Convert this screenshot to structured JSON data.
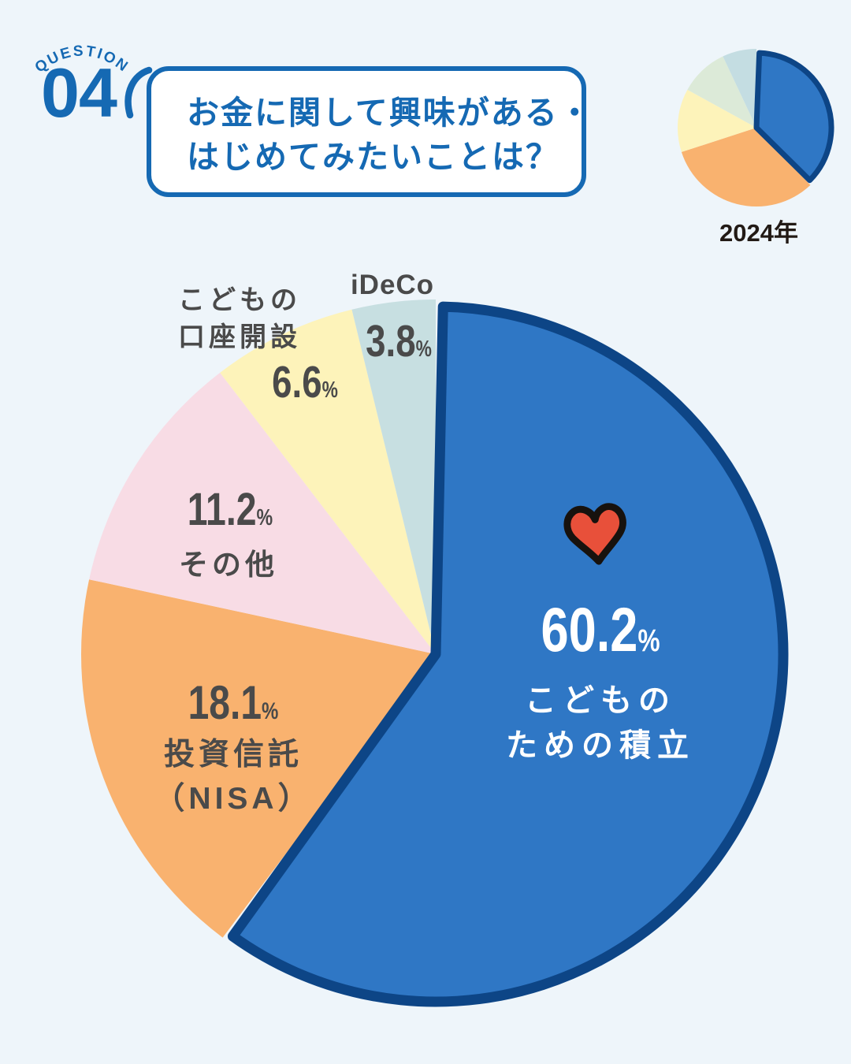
{
  "page": {
    "background_color": "#eef5fa"
  },
  "header": {
    "question_label": "QUESTION",
    "question_number": "04",
    "accent_color": "#1569b3",
    "bubble": {
      "line1": "お金に関して興味がある・",
      "line2": "はじめてみたいことは？"
    }
  },
  "mini_chart_caption": "2024年",
  "main_chart": {
    "labels": [
      {
        "value": "60.2",
        "unit": "%",
        "line1": "こどもの",
        "line2": "ための積立"
      },
      {
        "value": "18.1",
        "unit": "%",
        "line1": "投資信託",
        "line2": "（NISA）"
      },
      {
        "value": "11.2",
        "unit": "%",
        "line1": "その他"
      },
      {
        "value": "6.6",
        "unit": "%",
        "line1": "こどもの",
        "line2": "口座開設"
      },
      {
        "value": "3.8",
        "unit": "%",
        "line1": "iDeCo"
      }
    ]
  },
  "chart_data": [
    {
      "type": "pie",
      "title": "お金に関して興味がある・はじめてみたいことは？",
      "direction": "clockwise",
      "start_angle_deg": 0,
      "border_color": "#0d4586",
      "segments": [
        {
          "label": "こどものための積立",
          "value": 60.2,
          "color": "#2f77c5",
          "highlighted": true,
          "text_color": "#ffffff"
        },
        {
          "label": "投資信託（NISA）",
          "value": 18.1,
          "color": "#f9b26f"
        },
        {
          "label": "その他",
          "value": 11.2,
          "color": "#f8dce5"
        },
        {
          "label": "こどもの口座開設",
          "value": 6.6,
          "color": "#fdf3ba"
        },
        {
          "label": "iDeCo",
          "value": 3.8,
          "color": "#c7dfe1"
        }
      ]
    },
    {
      "type": "pie",
      "caption": "2024年",
      "direction": "clockwise",
      "start_angle_deg": 0,
      "border_color": "#0d4586",
      "values_estimated_from_angles": true,
      "segments": [
        {
          "value": 38,
          "color": "#2f77c5",
          "highlighted": true
        },
        {
          "value": 32,
          "color": "#f9b26f"
        },
        {
          "value": 13,
          "color": "#fdf3ba"
        },
        {
          "value": 10,
          "color": "#dcead8"
        },
        {
          "value": 7,
          "color": "#c4dde2"
        }
      ]
    }
  ],
  "icons": {
    "heart": {
      "fill": "#e8503a",
      "outline": "#17120e"
    }
  }
}
